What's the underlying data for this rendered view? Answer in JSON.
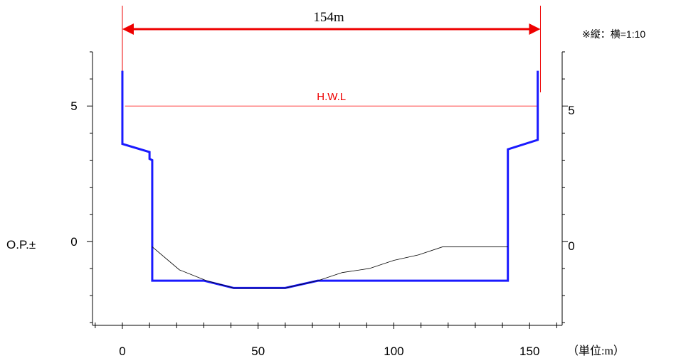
{
  "chart_data": {
    "type": "line",
    "width_annotation": {
      "text": "154m",
      "from_x": 0,
      "to_x": 154
    },
    "scale_note": "※縦：横=1:10",
    "unit_label": "（単位:m）",
    "y_axis_prefix": "O.P.±",
    "x_ticks": [
      "0",
      "50",
      "100",
      "150"
    ],
    "x_tick_values": [
      0,
      50,
      100,
      150
    ],
    "y_ticks_left": [
      "5",
      "0"
    ],
    "y_ticks_right": [
      "5",
      "0"
    ],
    "y_tick_values": [
      5,
      0
    ],
    "xlim": [
      -11,
      162
    ],
    "ylim": [
      -3.1,
      7
    ],
    "hwl": {
      "label": "H.W.L",
      "y": 5,
      "x_range": [
        1,
        153
      ]
    },
    "series": [
      {
        "role": "levee_section",
        "points": [
          [
            0,
            6.3
          ],
          [
            0,
            3.6
          ],
          [
            10,
            3.3
          ],
          [
            10,
            3.05
          ],
          [
            11,
            3.0
          ],
          [
            11,
            -1.45
          ],
          [
            30,
            -1.45
          ],
          [
            41,
            -1.72
          ],
          [
            60,
            -1.72
          ],
          [
            72,
            -1.45
          ],
          [
            142,
            -1.45
          ],
          [
            142,
            3.4
          ],
          [
            153,
            3.75
          ],
          [
            153,
            6.3
          ]
        ]
      },
      {
        "role": "current_riverbed",
        "points": [
          [
            11,
            -0.2
          ],
          [
            21,
            -1.05
          ],
          [
            31,
            -1.45
          ],
          [
            41,
            -1.72
          ],
          [
            60,
            -1.72
          ],
          [
            72,
            -1.45
          ],
          [
            81,
            -1.15
          ],
          [
            91,
            -1.0
          ],
          [
            100,
            -0.7
          ],
          [
            109,
            -0.5
          ],
          [
            118,
            -0.2
          ],
          [
            142,
            -0.2
          ]
        ]
      }
    ],
    "colors": {
      "section": "#1a1aff",
      "riverbed": "#000000",
      "hwl": "#ff3333",
      "annotation": "#ee0000",
      "axis": "#000000"
    },
    "grid": false,
    "legend": "none"
  }
}
